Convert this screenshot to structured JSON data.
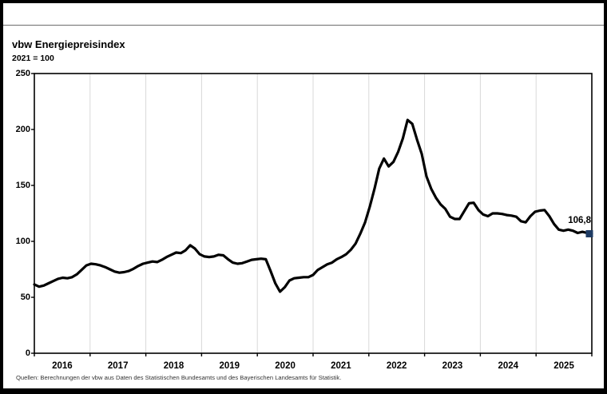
{
  "header": {
    "note": ""
  },
  "chart": {
    "title": "vbw Energiepreisindex",
    "subtitle": "2021 = 100",
    "last_value_label": "106,8",
    "source": "Quellen: Berechnungen der vbw aus Daten des Statistischen Bundesamts und des Bayerischen Landesamts für Statistik."
  },
  "chart_data": {
    "type": "line",
    "title": "vbw Energiepreisindex",
    "subtitle": "2021 = 100",
    "xlabel": "",
    "ylabel": "",
    "ylim": [
      0,
      250
    ],
    "y_tick_interval": 50,
    "y_tick_labels": [
      "250",
      "200",
      "150",
      "100",
      "50",
      "0"
    ],
    "x_tick_labels": [
      "2016",
      "2017",
      "2018",
      "2019",
      "2020",
      "2021",
      "2022",
      "2023",
      "2024",
      "2025"
    ],
    "x_range_description": "monthly values, January 2016 to November 2025",
    "grid": "vertical-year-gridlines-only",
    "legend": "none",
    "line_color": "#000000",
    "marker_color": "#1f3c64",
    "gridline_color": "#d9d9d9",
    "last_value": 106.8,
    "series": [
      {
        "name": "vbw Energiepreisindex",
        "values": [
          61.5,
          59.5,
          60.5,
          62.5,
          64.5,
          66.5,
          67.5,
          67,
          68,
          70.5,
          74.5,
          78.5,
          80,
          79.5,
          78.5,
          77,
          75,
          73,
          72,
          72.5,
          73.5,
          75.5,
          78,
          80,
          81,
          82,
          81.5,
          83.5,
          86,
          88,
          90,
          89.5,
          92,
          96.5,
          93.5,
          88.5,
          86.5,
          86,
          86.5,
          88,
          87.5,
          84,
          81,
          80,
          80.5,
          82,
          83.5,
          84,
          84.5,
          84,
          73.5,
          62.5,
          55,
          59,
          65,
          67,
          67.5,
          68,
          68,
          70,
          74.5,
          77,
          79.5,
          81,
          84,
          86,
          88.5,
          92.5,
          98,
          107,
          117,
          131,
          147,
          165,
          174,
          167,
          171,
          180,
          192,
          208.5,
          205,
          191,
          178,
          158,
          147,
          139,
          133,
          129,
          122,
          120,
          120,
          127,
          134,
          134.5,
          128,
          124,
          122.5,
          125,
          125,
          124.5,
          123.5,
          123,
          122,
          118,
          117,
          122.5,
          126.5,
          127.5,
          128,
          122.5,
          115.5,
          110.5,
          109.5,
          110.5,
          109.5,
          107.5,
          108.5,
          107.5,
          106.8
        ]
      }
    ]
  }
}
